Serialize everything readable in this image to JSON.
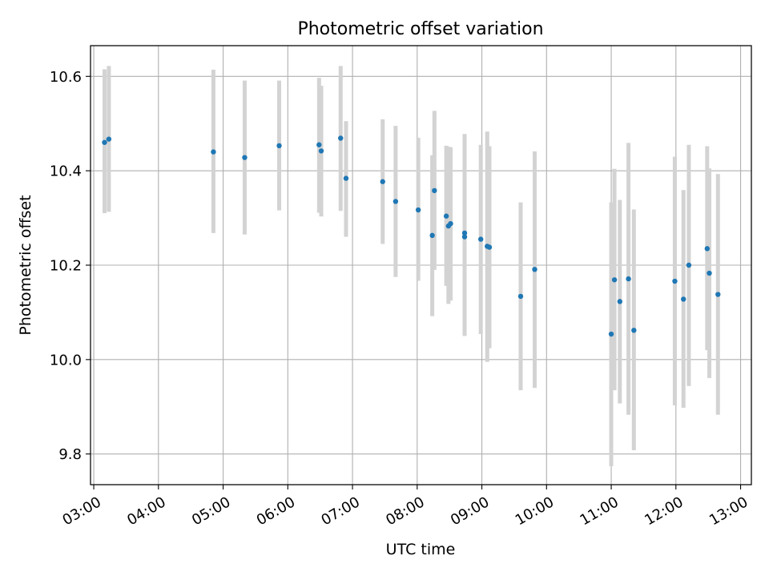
{
  "chart_data": {
    "type": "scatter",
    "title": "Photometric offset variation",
    "xlabel": "UTC time",
    "ylabel": "Photometric offset",
    "x_is_time": true,
    "xlim": [
      "02:57",
      "13:10"
    ],
    "ylim": [
      9.735,
      10.665
    ],
    "x_ticks": [
      "03:00",
      "04:00",
      "05:00",
      "06:00",
      "07:00",
      "08:00",
      "09:00",
      "10:00",
      "11:00",
      "12:00",
      "13:00"
    ],
    "y_ticks": [
      9.8,
      10.0,
      10.2,
      10.4,
      10.6
    ],
    "y_tick_labels": [
      "9.8",
      "10.0",
      "10.2",
      "10.4",
      "10.6"
    ],
    "grid": true,
    "colors": {
      "points": "#1f77b4",
      "error_bars": "#d3d3d3",
      "grid": "#b0b0b0"
    },
    "points": [
      {
        "x": "03:10",
        "y": 10.46,
        "ylo": 10.31,
        "yhi": 10.615
      },
      {
        "x": "03:14",
        "y": 10.467,
        "ylo": 10.313,
        "yhi": 10.622
      },
      {
        "x": "04:51",
        "y": 10.44,
        "ylo": 10.268,
        "yhi": 10.614
      },
      {
        "x": "05:20",
        "y": 10.428,
        "ylo": 10.265,
        "yhi": 10.591
      },
      {
        "x": "05:52",
        "y": 10.453,
        "ylo": 10.316,
        "yhi": 10.591
      },
      {
        "x": "06:29",
        "y": 10.455,
        "ylo": 10.311,
        "yhi": 10.597
      },
      {
        "x": "06:31",
        "y": 10.442,
        "ylo": 10.303,
        "yhi": 10.58
      },
      {
        "x": "06:49",
        "y": 10.469,
        "ylo": 10.315,
        "yhi": 10.622
      },
      {
        "x": "06:54",
        "y": 10.384,
        "ylo": 10.26,
        "yhi": 10.505
      },
      {
        "x": "07:28",
        "y": 10.377,
        "ylo": 10.245,
        "yhi": 10.509
      },
      {
        "x": "07:40",
        "y": 10.335,
        "ylo": 10.175,
        "yhi": 10.495
      },
      {
        "x": "08:01",
        "y": 10.317,
        "ylo": 10.167,
        "yhi": 10.47
      },
      {
        "x": "08:14",
        "y": 10.263,
        "ylo": 10.092,
        "yhi": 10.433
      },
      {
        "x": "08:16",
        "y": 10.358,
        "ylo": 10.19,
        "yhi": 10.527
      },
      {
        "x": "08:27",
        "y": 10.304,
        "ylo": 10.156,
        "yhi": 10.453
      },
      {
        "x": "08:29",
        "y": 10.283,
        "ylo": 10.118,
        "yhi": 10.451
      },
      {
        "x": "08:31",
        "y": 10.288,
        "ylo": 10.125,
        "yhi": 10.45
      },
      {
        "x": "08:44",
        "y": 10.268,
        "ylo": 10.06,
        "yhi": 10.478
      },
      {
        "x": "08:44",
        "y": 10.26,
        "ylo": 10.05,
        "yhi": 10.47
      },
      {
        "x": "08:59",
        "y": 10.255,
        "ylo": 10.054,
        "yhi": 10.455
      },
      {
        "x": "09:05",
        "y": 10.24,
        "ylo": 9.995,
        "yhi": 10.483
      },
      {
        "x": "09:07",
        "y": 10.238,
        "ylo": 10.024,
        "yhi": 10.452
      },
      {
        "x": "09:36",
        "y": 10.134,
        "ylo": 9.935,
        "yhi": 10.333
      },
      {
        "x": "09:49",
        "y": 10.191,
        "ylo": 9.94,
        "yhi": 10.441
      },
      {
        "x": "11:00",
        "y": 10.054,
        "ylo": 9.774,
        "yhi": 10.333
      },
      {
        "x": "11:03",
        "y": 10.169,
        "ylo": 9.935,
        "yhi": 10.404
      },
      {
        "x": "11:08",
        "y": 10.123,
        "ylo": 9.907,
        "yhi": 10.338
      },
      {
        "x": "11:16",
        "y": 10.171,
        "ylo": 9.883,
        "yhi": 10.459
      },
      {
        "x": "11:21",
        "y": 10.062,
        "ylo": 9.808,
        "yhi": 10.318
      },
      {
        "x": "11:59",
        "y": 10.166,
        "ylo": 9.903,
        "yhi": 10.43
      },
      {
        "x": "12:07",
        "y": 10.128,
        "ylo": 9.898,
        "yhi": 10.359
      },
      {
        "x": "12:12",
        "y": 10.2,
        "ylo": 9.944,
        "yhi": 10.455
      },
      {
        "x": "12:29",
        "y": 10.235,
        "ylo": 10.02,
        "yhi": 10.452
      },
      {
        "x": "12:31",
        "y": 10.183,
        "ylo": 9.961,
        "yhi": 10.405
      },
      {
        "x": "12:39",
        "y": 10.138,
        "ylo": 9.883,
        "yhi": 10.393
      }
    ]
  }
}
